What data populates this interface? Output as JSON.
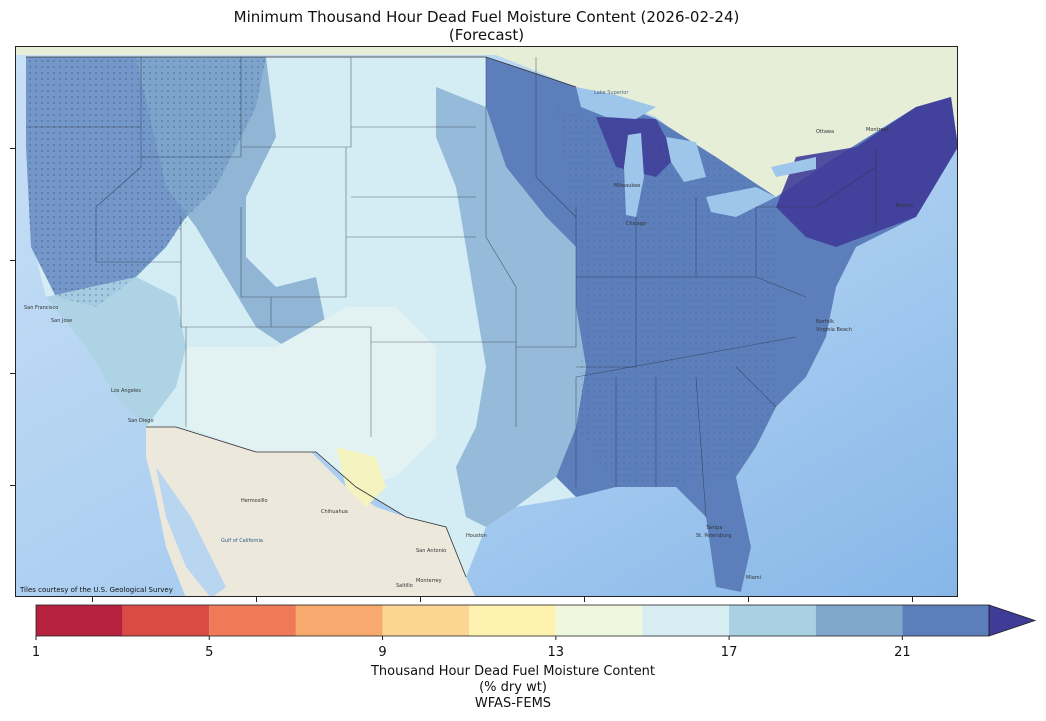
{
  "title": {
    "line1": "Minimum Thousand Hour Dead Fuel Moisture Content (2026-02-24)",
    "line2": "(Forecast)"
  },
  "map": {
    "credit": "Tiles courtesy of the U.S. Geological Survey",
    "city_labels": [
      "Lake Superior",
      "Milwaukee",
      "Chicago",
      "Ottawa",
      "Montreal",
      "Boston",
      "Norfolk",
      "Virginia Beach",
      "Tampa",
      "St. Petersburg",
      "Miami",
      "Houston",
      "San Antonio",
      "Monterrey",
      "Chihuahua",
      "Hermosillo",
      "Gulf of California",
      "San Francisco",
      "San Jose",
      "Los Angeles",
      "San Diego",
      "Saltillo"
    ],
    "colors": {
      "ocean": "#a8cdef",
      "land_canada": "#e9efd9",
      "land_mexico": "#ece8dc",
      "lakes": "#9ec5ea"
    }
  },
  "colorbar": {
    "tick_labels": [
      "1",
      "5",
      "9",
      "13",
      "17",
      "21"
    ],
    "tick_values": [
      1,
      5,
      9,
      13,
      17,
      21
    ],
    "label_line1": "Thousand Hour Dead Fuel Moisture Content",
    "label_line2": "(% dry wt)",
    "label_line3": "WFAS-FEMS",
    "bins": [
      1,
      3,
      5,
      7,
      9,
      11,
      13,
      15,
      17,
      19,
      21,
      23
    ],
    "colors": [
      "#b5213e",
      "#d94b44",
      "#ee7a58",
      "#f8aa6e",
      "#fdd592",
      "#fff2b0",
      "#eff8de",
      "#d6edf2",
      "#a9d0e3",
      "#7fa8cc",
      "#5c7fbc",
      "#3f3c98"
    ],
    "extend": "max"
  }
}
